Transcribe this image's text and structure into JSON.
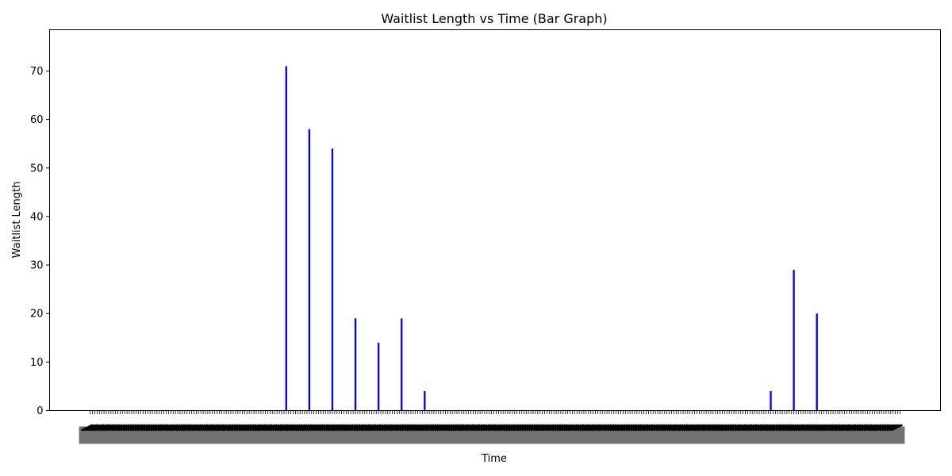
{
  "chart_data": {
    "type": "bar",
    "title": "Waitlist Length vs Time (Bar Graph)",
    "xlabel": "Time",
    "ylabel": "Waitlist Length",
    "ylim": [
      0,
      78.5
    ],
    "yticks": [
      0,
      10,
      20,
      30,
      40,
      50,
      60,
      70
    ],
    "n_categories": 352,
    "category_labels_legible": false,
    "bars": [
      {
        "index": 85,
        "value": 71
      },
      {
        "index": 95,
        "value": 58
      },
      {
        "index": 105,
        "value": 54
      },
      {
        "index": 115,
        "value": 19
      },
      {
        "index": 125,
        "value": 14
      },
      {
        "index": 135,
        "value": 19
      },
      {
        "index": 145,
        "value": 4
      },
      {
        "index": 295,
        "value": 4
      },
      {
        "index": 305,
        "value": 29
      },
      {
        "index": 315,
        "value": 20
      }
    ],
    "bar_color": "#0000ff",
    "grid": false,
    "legend": "none"
  }
}
